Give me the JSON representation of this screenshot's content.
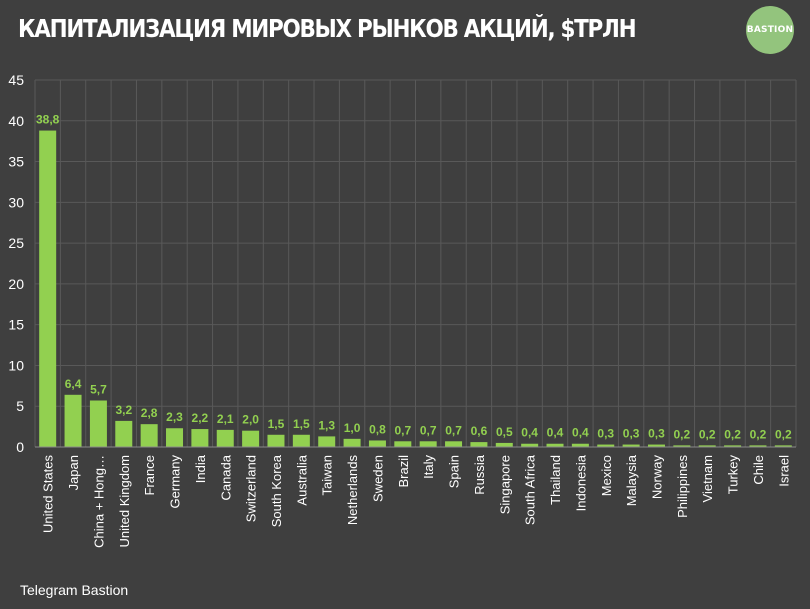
{
  "header": {
    "title": "КАПИТАЛИЗАЦИЯ МИРОВЫХ РЫНКОВ АКЦИЙ, $ТРЛН",
    "logo_text": "BASTION"
  },
  "footer": {
    "text": "Telegram Bastion"
  },
  "colors": {
    "background": "#3f3f3f",
    "bar": "#92d050",
    "value_label": "#92d050",
    "grid": "#595959",
    "text": "#ffffff",
    "logo": "#93c47d"
  },
  "chart_data": {
    "type": "bar",
    "title": "КАПИТАЛИЗАЦИЯ МИРОВЫХ РЫНКОВ АКЦИЙ, $ТРЛН",
    "xlabel": "",
    "ylabel": "",
    "ylim": [
      0,
      45
    ],
    "yticks": [
      "0",
      "5",
      "10",
      "15",
      "20",
      "25",
      "30",
      "35",
      "40",
      "45"
    ],
    "grid": true,
    "categories": [
      "United States",
      "Japan",
      "China + Hong…",
      "United Kingdom",
      "France",
      "Germany",
      "India",
      "Canada",
      "Switzerland",
      "South Korea",
      "Australia",
      "Taiwan",
      "Netherlands",
      "Sweden",
      "Brazil",
      "Italy",
      "Spain",
      "Russia",
      "Singapore",
      "South Africa",
      "Thailand",
      "Indonesia",
      "Mexico",
      "Malaysia",
      "Norway",
      "Philippines",
      "Vietnam",
      "Turkey",
      "Chile",
      "Israel"
    ],
    "values": [
      38.8,
      6.4,
      5.7,
      3.2,
      2.8,
      2.3,
      2.2,
      2.1,
      2.0,
      1.5,
      1.5,
      1.3,
      1.0,
      0.8,
      0.7,
      0.7,
      0.7,
      0.6,
      0.5,
      0.4,
      0.4,
      0.4,
      0.3,
      0.3,
      0.3,
      0.2,
      0.2,
      0.2,
      0.2,
      0.2
    ],
    "value_labels": [
      "38,8",
      "6,4",
      "5,7",
      "3,2",
      "2,8",
      "2,3",
      "2,2",
      "2,1",
      "2,0",
      "1,5",
      "1,5",
      "1,3",
      "1,0",
      "0,8",
      "0,7",
      "0,7",
      "0,7",
      "0,6",
      "0,5",
      "0,4",
      "0,4",
      "0,4",
      "0,3",
      "0,3",
      "0,3",
      "0,2",
      "0,2",
      "0,2",
      "0,2",
      "0,2"
    ]
  }
}
